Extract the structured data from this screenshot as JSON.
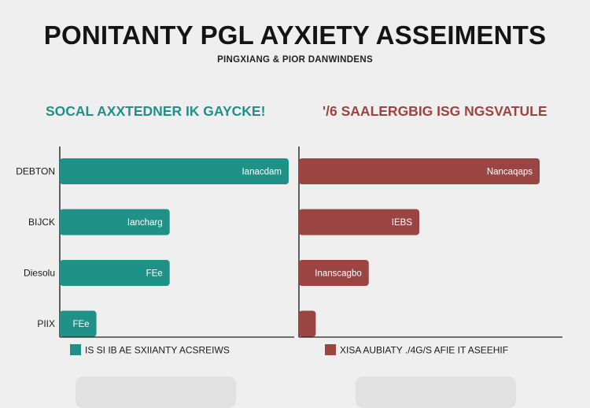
{
  "header": {
    "title": "PONITANTY PGL AYXIETY ASSEIMENTS",
    "subtitle": "PINGXIANG & PIOR DANWINDENS"
  },
  "colors": {
    "left_series": "#1f9187",
    "right_series": "#9b4543",
    "axis": "#222222",
    "background": "#efefef"
  },
  "chart_data": [
    {
      "type": "bar",
      "orientation": "horizontal",
      "title": "SOCAL AXXTEDNER IK GAYCKE!",
      "title_color": "#1f9187",
      "categories": [
        "DEBTON",
        "BIJCK",
        "Diesolu",
        "PIIX"
      ],
      "series": [
        {
          "name": "IS SI IB AE SXIIANTY ACSREIWS",
          "color": "#1f9187",
          "values": [
            100,
            48,
            48,
            16
          ],
          "labels": [
            "Ianacdam",
            "Iancharg",
            "FEe",
            "FEe"
          ]
        }
      ],
      "xlim": [
        0,
        100
      ],
      "grid": false,
      "legend": "bottom"
    },
    {
      "type": "bar",
      "orientation": "horizontal",
      "title": "'/6 SAALERGBIG ISG NGSVATULE",
      "title_color": "#9b4543",
      "categories": [
        "DEBTON",
        "BIJCK",
        "Diesolu",
        "PIIX"
      ],
      "series": [
        {
          "name": "XISA AUBIATY ./4G/S AFIE IT ASEEHIF",
          "color": "#9b4543",
          "values": [
            100,
            50,
            29,
            7
          ],
          "labels": [
            "Nancaqaps",
            "IEBS",
            "Inanscagbo",
            ""
          ]
        }
      ],
      "xlim": [
        0,
        100
      ],
      "grid": false,
      "legend": "bottom"
    }
  ]
}
